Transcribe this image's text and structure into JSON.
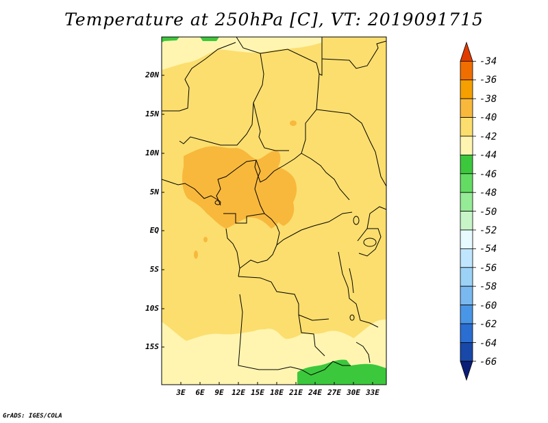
{
  "title": "Temperature at 250hPa [C], VT: 2019091715",
  "credit": "GrADS: IGES/COLA",
  "map": {
    "variable": "Temperature at 250hPa",
    "units": "C",
    "valid_time": "2019091715",
    "lat_labels": [
      "20N",
      "15N",
      "10N",
      "5N",
      "EQ",
      "5S",
      "10S",
      "15S"
    ],
    "lon_labels": [
      "3E",
      "6E",
      "9E",
      "12E",
      "15E",
      "18E",
      "21E",
      "24E",
      "27E",
      "30E",
      "33E"
    ]
  },
  "colorbar": {
    "labels": [
      "-34",
      "-36",
      "-38",
      "-40",
      "-42",
      "-44",
      "-46",
      "-48",
      "-50",
      "-52",
      "-54",
      "-56",
      "-58",
      "-60",
      "-62",
      "-64",
      "-66"
    ],
    "colors": [
      "#e03c00",
      "#f06e00",
      "#f5a000",
      "#f8b83c",
      "#fbde6e",
      "#fff5b0",
      "#3cc83c",
      "#64dc64",
      "#96eb96",
      "#c8f5c8",
      "#e6faff",
      "#c0e6ff",
      "#9cd2f5",
      "#7ab8f0",
      "#4a96e6",
      "#2a6ed2",
      "#1848a8",
      "#0a1e78"
    ]
  },
  "palette": {
    "background": "#fbde6e",
    "pale": "#fff5b0",
    "orange": "#f8b83c",
    "green": "#3cc83c"
  }
}
